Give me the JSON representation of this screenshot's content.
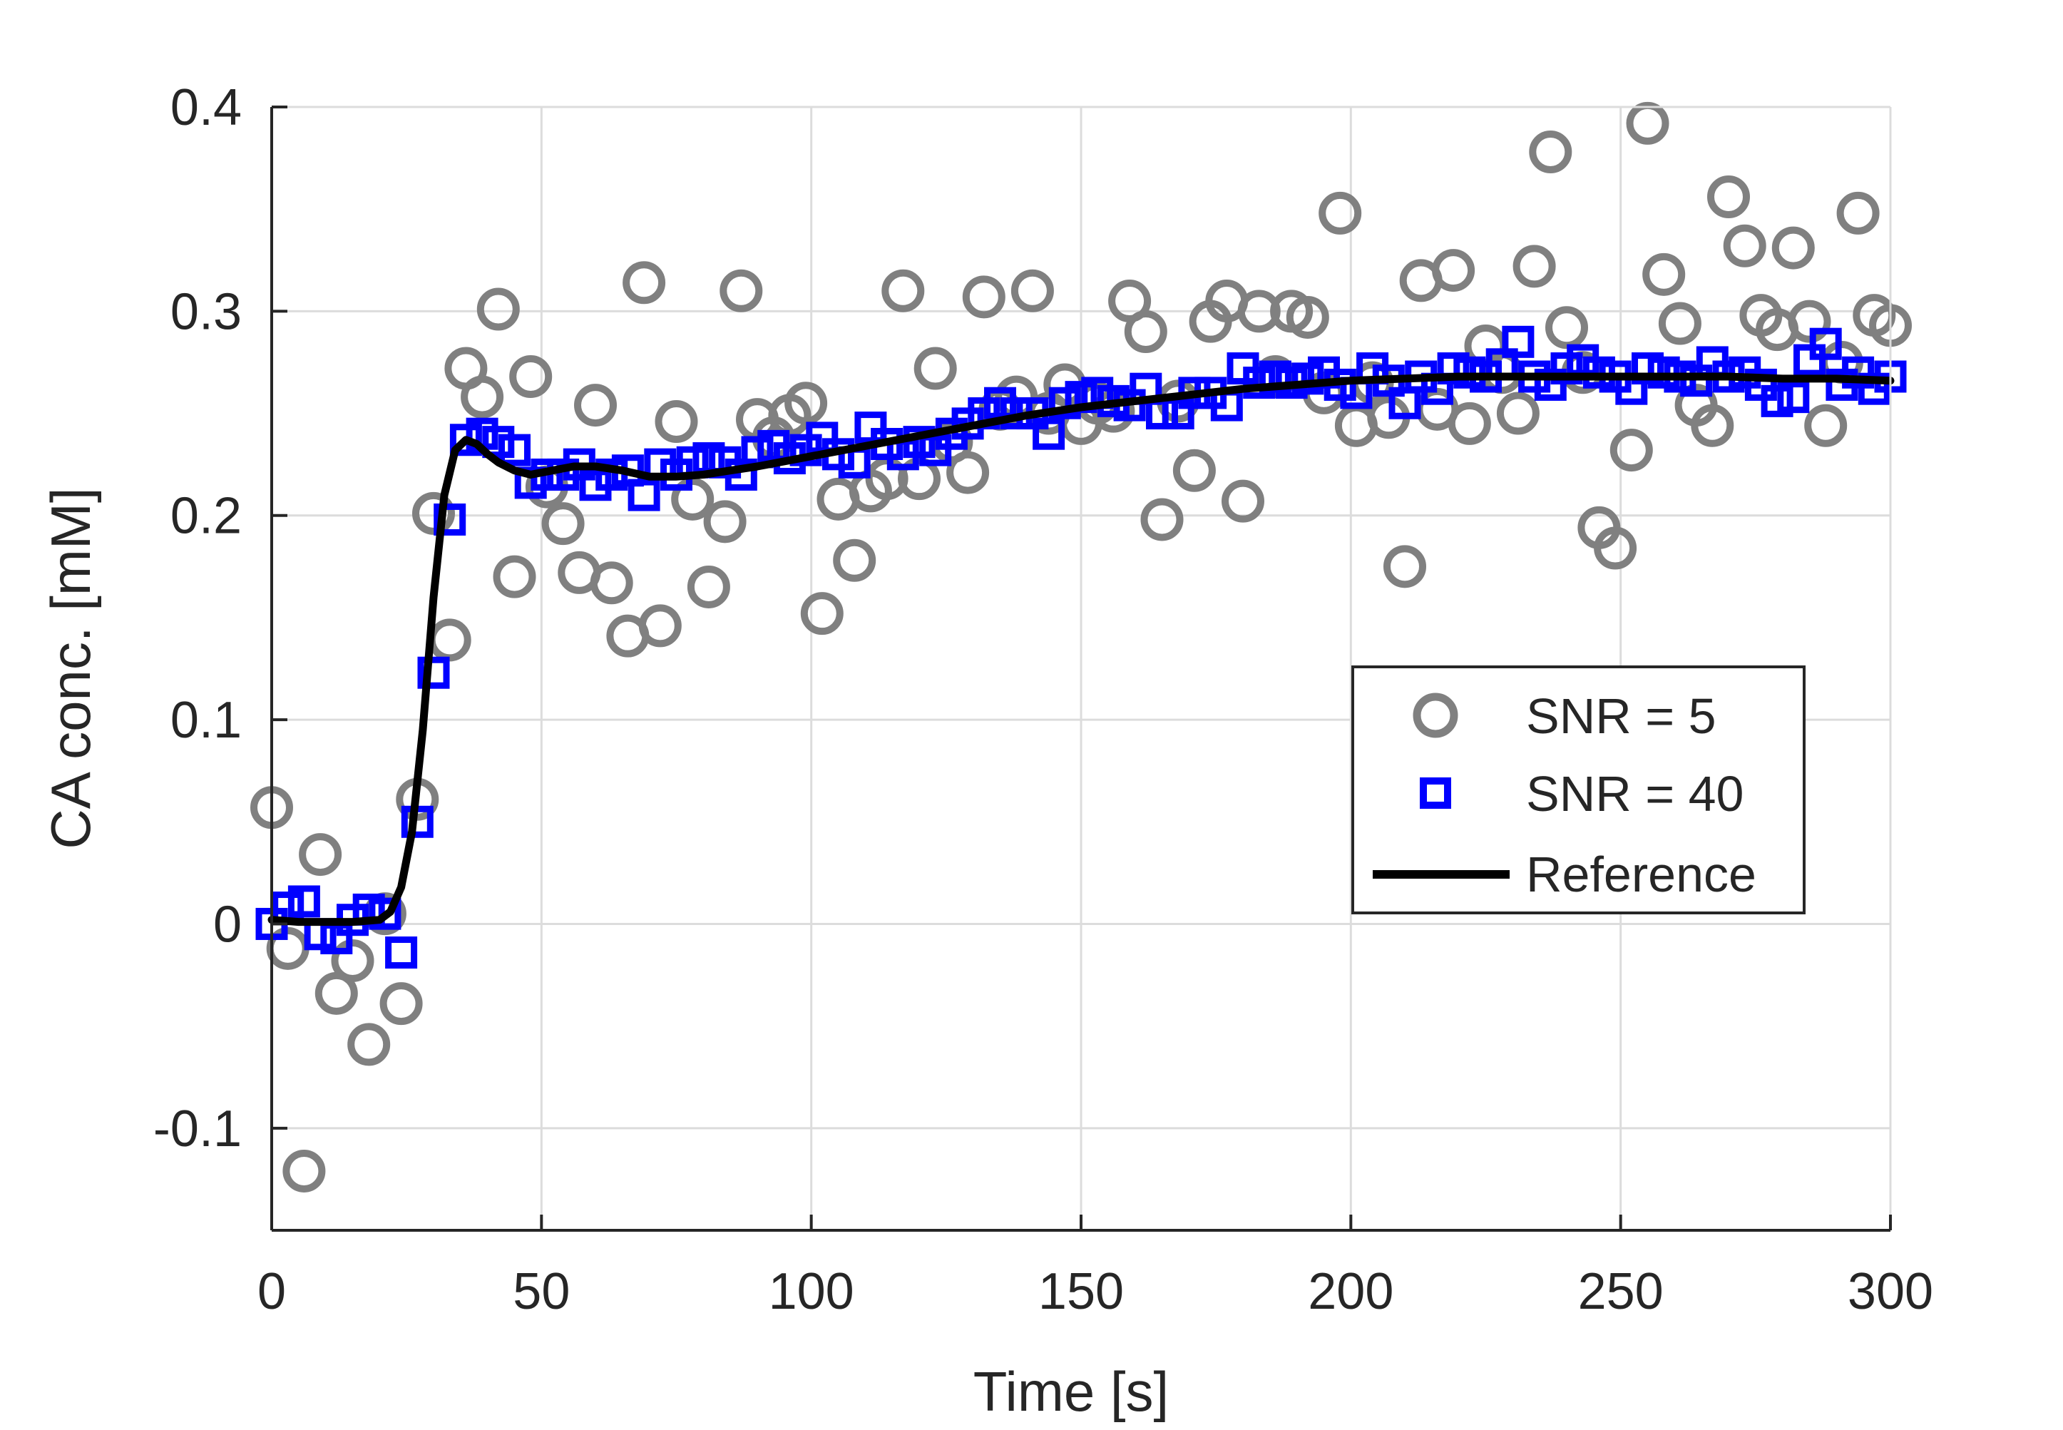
{
  "chart_data": {
    "type": "scatter",
    "title": "",
    "xlabel": "Time [s]",
    "ylabel": "CA conc. [mM]",
    "xlim": [
      0,
      300
    ],
    "ylim": [
      -0.15,
      0.4
    ],
    "xticks": [
      0,
      50,
      100,
      150,
      200,
      250,
      300
    ],
    "yticks": [
      -0.1,
      0,
      0.1,
      0.2,
      0.3,
      0.4
    ],
    "xtick_labels": [
      "0",
      "50",
      "100",
      "150",
      "200",
      "250",
      "300"
    ],
    "ytick_labels": [
      "-0.1",
      "0",
      "0.1",
      "0.2",
      "0.3",
      "0.4"
    ],
    "grid": true,
    "legend_position": "center-right",
    "colors": {
      "snr5": "#808080",
      "snr40": "#0000ff",
      "reference": "#000000",
      "grid": "#dcdcdc",
      "axis": "#262626"
    },
    "series": [
      {
        "name": "SNR = 5",
        "marker": "circle",
        "x": [
          0,
          3,
          6,
          9,
          12,
          15,
          18,
          21,
          24,
          27,
          30,
          33,
          36,
          39,
          42,
          45,
          48,
          51,
          54,
          57,
          60,
          63,
          66,
          69,
          72,
          75,
          78,
          81,
          84,
          87,
          90,
          93,
          96,
          99,
          102,
          105,
          108,
          111,
          114,
          117,
          120,
          123,
          126,
          129,
          132,
          135,
          138,
          141,
          144,
          147,
          150,
          153,
          156,
          159,
          162,
          165,
          168,
          171,
          174,
          177,
          180,
          183,
          186,
          189,
          192,
          195,
          198,
          201,
          204,
          207,
          210,
          213,
          216,
          219,
          222,
          225,
          228,
          231,
          234,
          237,
          240,
          243,
          246,
          249,
          252,
          255,
          258,
          261,
          264,
          267,
          270,
          273,
          276,
          279,
          282,
          285,
          288,
          291,
          294,
          297,
          300
        ],
        "values": [
          0.057,
          -0.012,
          -0.121,
          0.034,
          -0.034,
          -0.018,
          -0.059,
          0.005,
          -0.039,
          0.061,
          0.201,
          0.139,
          0.272,
          0.258,
          0.301,
          0.17,
          0.268,
          0.214,
          0.196,
          0.172,
          0.254,
          0.167,
          0.141,
          0.314,
          0.146,
          0.246,
          0.208,
          0.165,
          0.197,
          0.31,
          0.247,
          0.238,
          0.249,
          0.255,
          0.152,
          0.208,
          0.178,
          0.212,
          0.218,
          0.31,
          0.218,
          0.272,
          0.236,
          0.221,
          0.307,
          0.252,
          0.258,
          0.31,
          0.25,
          0.264,
          0.245,
          0.255,
          0.251,
          0.305,
          0.29,
          0.198,
          0.256,
          0.222,
          0.295,
          0.305,
          0.207,
          0.3,
          0.268,
          0.3,
          0.297,
          0.26,
          0.348,
          0.244,
          0.265,
          0.248,
          0.175,
          0.315,
          0.252,
          0.32,
          0.245,
          0.283,
          0.27,
          0.25,
          0.322,
          0.378,
          0.292,
          0.27,
          0.194,
          0.184,
          0.232,
          0.392,
          0.318,
          0.294,
          0.254,
          0.244,
          0.356,
          0.332,
          0.298,
          0.291,
          0.331,
          0.295,
          0.244,
          0.275,
          0.348,
          0.298,
          0.293
        ]
      },
      {
        "name": "SNR = 40",
        "marker": "square",
        "x": [
          0,
          3,
          6,
          9,
          12,
          15,
          18,
          21,
          24,
          27,
          30,
          33,
          36,
          39,
          42,
          45,
          48,
          51,
          54,
          57,
          60,
          63,
          66,
          69,
          72,
          75,
          78,
          81,
          84,
          87,
          90,
          93,
          96,
          99,
          102,
          105,
          108,
          111,
          114,
          117,
          120,
          123,
          126,
          129,
          132,
          135,
          138,
          141,
          144,
          147,
          150,
          153,
          156,
          159,
          162,
          165,
          168,
          171,
          174,
          177,
          180,
          183,
          186,
          189,
          192,
          195,
          198,
          201,
          204,
          207,
          210,
          213,
          216,
          219,
          222,
          225,
          228,
          231,
          234,
          237,
          240,
          243,
          246,
          249,
          252,
          255,
          258,
          261,
          264,
          267,
          270,
          273,
          276,
          279,
          282,
          285,
          288,
          291,
          294,
          297,
          300
        ],
        "values": [
          0,
          0.008,
          0.011,
          -0.005,
          -0.007,
          0.002,
          0.007,
          0.005,
          -0.014,
          0.05,
          0.123,
          0.198,
          0.237,
          0.24,
          0.236,
          0.232,
          0.216,
          0.22,
          0.22,
          0.225,
          0.215,
          0.22,
          0.222,
          0.21,
          0.225,
          0.22,
          0.226,
          0.228,
          0.226,
          0.22,
          0.231,
          0.234,
          0.228,
          0.232,
          0.238,
          0.23,
          0.226,
          0.243,
          0.235,
          0.23,
          0.236,
          0.232,
          0.24,
          0.245,
          0.25,
          0.255,
          0.25,
          0.25,
          0.24,
          0.255,
          0.258,
          0.26,
          0.256,
          0.254,
          0.262,
          0.25,
          0.25,
          0.26,
          0.26,
          0.254,
          0.272,
          0.265,
          0.268,
          0.265,
          0.267,
          0.27,
          0.264,
          0.26,
          0.272,
          0.266,
          0.255,
          0.268,
          0.262,
          0.272,
          0.27,
          0.268,
          0.274,
          0.285,
          0.268,
          0.264,
          0.272,
          0.276,
          0.27,
          0.268,
          0.262,
          0.272,
          0.27,
          0.268,
          0.266,
          0.275,
          0.268,
          0.27,
          0.264,
          0.256,
          0.258,
          0.276,
          0.284,
          0.264,
          0.27,
          0.262,
          0.268
        ]
      },
      {
        "name": "Reference",
        "marker": "line",
        "x": [
          0,
          5,
          10,
          15,
          20,
          22,
          24,
          26,
          28,
          30,
          32,
          34,
          36,
          38,
          40,
          42,
          45,
          48,
          52,
          56,
          60,
          65,
          70,
          75,
          80,
          90,
          100,
          110,
          120,
          130,
          140,
          150,
          160,
          170,
          180,
          190,
          200,
          210,
          220,
          230,
          240,
          250,
          260,
          270,
          280,
          290,
          300
        ],
        "values": [
          0.002,
          0.001,
          0.001,
          0.001,
          0.002,
          0.006,
          0.018,
          0.045,
          0.095,
          0.16,
          0.21,
          0.232,
          0.237,
          0.235,
          0.23,
          0.226,
          0.222,
          0.22,
          0.222,
          0.224,
          0.224,
          0.222,
          0.219,
          0.219,
          0.22,
          0.224,
          0.229,
          0.234,
          0.239,
          0.244,
          0.249,
          0.253,
          0.256,
          0.259,
          0.262,
          0.264,
          0.266,
          0.267,
          0.268,
          0.268,
          0.268,
          0.268,
          0.268,
          0.268,
          0.267,
          0.267,
          0.266
        ]
      }
    ]
  }
}
